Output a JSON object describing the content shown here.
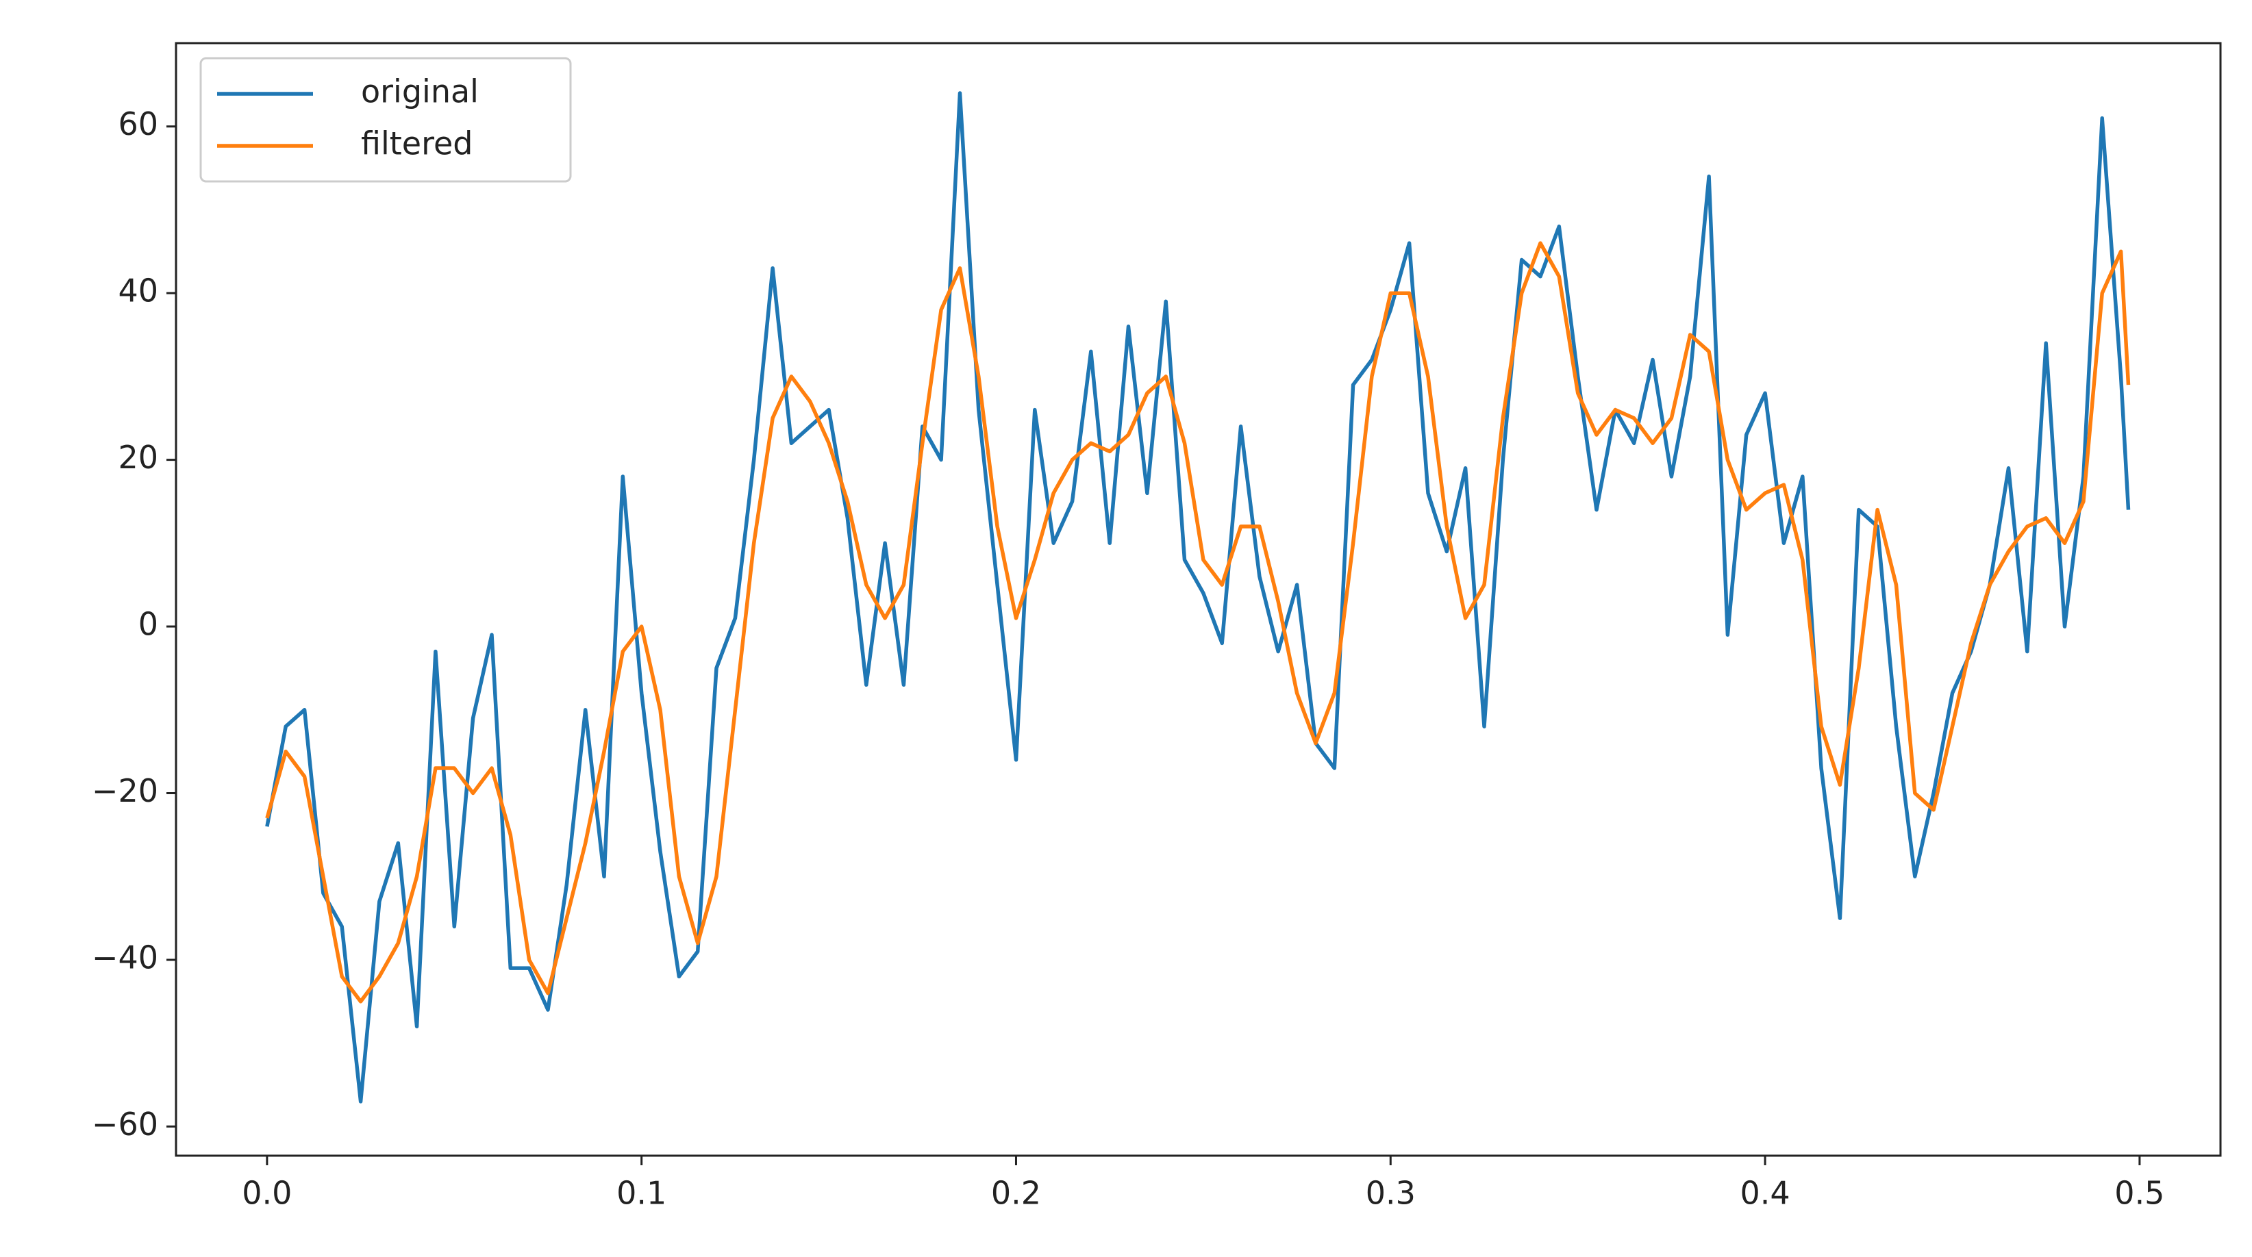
{
  "chart_data": {
    "type": "line",
    "x": [
      0,
      0.005,
      0.01,
      0.015,
      0.02,
      0.025,
      0.03,
      0.035,
      0.04,
      0.045,
      0.05,
      0.055,
      0.06,
      0.065,
      0.07,
      0.075,
      0.08,
      0.085,
      0.09,
      0.095,
      0.1,
      0.105,
      0.11,
      0.115,
      0.12,
      0.125,
      0.13,
      0.135,
      0.14,
      0.145,
      0.15,
      0.155,
      0.16,
      0.165,
      0.17,
      0.175,
      0.18,
      0.185,
      0.19,
      0.195,
      0.2,
      0.205,
      0.21,
      0.215,
      0.22,
      0.225,
      0.23,
      0.235,
      0.24,
      0.245,
      0.25,
      0.255,
      0.26,
      0.265,
      0.27,
      0.275,
      0.28,
      0.285,
      0.29,
      0.295,
      0.3,
      0.305,
      0.31,
      0.315,
      0.32,
      0.325,
      0.33,
      0.335,
      0.34,
      0.345,
      0.35,
      0.355,
      0.36,
      0.365,
      0.37,
      0.375,
      0.38,
      0.385,
      0.39,
      0.395,
      0.4,
      0.405,
      0.41,
      0.415,
      0.42,
      0.425,
      0.43,
      0.435,
      0.44,
      0.445,
      0.45,
      0.455,
      0.46,
      0.465,
      0.47,
      0.475,
      0.48,
      0.485,
      0.49,
      0.495,
      0.497
    ],
    "series": [
      {
        "name": "original",
        "color": "#1f77b4",
        "values": [
          -24,
          -12,
          -10,
          -32,
          -36,
          -57,
          -33,
          -26,
          -48,
          -3,
          -36,
          -11,
          -1,
          -41,
          -41,
          -46,
          -31,
          -10,
          -30,
          18,
          -8,
          -27,
          -42,
          -39,
          -5,
          1,
          20,
          43,
          22,
          24,
          26,
          13,
          -7,
          10,
          -7,
          24,
          20,
          64,
          26,
          5,
          -16,
          26,
          10,
          15,
          33,
          10,
          36,
          16,
          39,
          8,
          4,
          -2,
          24,
          6,
          -3,
          5,
          -14,
          -17,
          29,
          32,
          38,
          46,
          16,
          9,
          19,
          -12,
          20,
          44,
          42,
          48,
          30,
          14,
          26,
          22,
          32,
          18,
          30,
          54,
          -1,
          23,
          28,
          10,
          18,
          -17,
          -35,
          14,
          12,
          -12,
          -30,
          -20,
          -8,
          -3,
          5,
          19,
          -3,
          34,
          0,
          18,
          61,
          30,
          14
        ]
      },
      {
        "name": "filtered",
        "color": "#ff7f0e",
        "values": [
          -23,
          -15,
          -18,
          -30,
          -42,
          -45,
          -42,
          -38,
          -30,
          -17,
          -17,
          -20,
          -17,
          -25,
          -40,
          -44,
          -35,
          -26,
          -15,
          -3,
          0,
          -10,
          -30,
          -38,
          -30,
          -10,
          10,
          25,
          30,
          27,
          22,
          15,
          5,
          1,
          5,
          22,
          38,
          43,
          30,
          12,
          1,
          8,
          16,
          20,
          22,
          21,
          23,
          28,
          30,
          22,
          8,
          5,
          12,
          12,
          3,
          -8,
          -14,
          -8,
          10,
          30,
          40,
          40,
          30,
          12,
          1,
          5,
          25,
          40,
          46,
          42,
          28,
          23,
          26,
          25,
          22,
          25,
          35,
          33,
          20,
          14,
          16,
          17,
          8,
          -12,
          -19,
          -5,
          14,
          5,
          -20,
          -22,
          -12,
          -2,
          5,
          9,
          12,
          13,
          10,
          15,
          40,
          45,
          29
        ]
      }
    ],
    "xlim": [
      -0.0243,
      0.5216
    ],
    "ylim": [
      -63.5,
      70
    ],
    "xticks": [
      {
        "value": 0,
        "label": "0.0"
      },
      0.1,
      0.2,
      0.3,
      0.4,
      0.5
    ],
    "yticks": [
      {
        "value": -60,
        "label": "−60"
      },
      {
        "value": -40,
        "label": "−40"
      },
      {
        "value": -20,
        "label": "−20"
      },
      0,
      20,
      40,
      60
    ],
    "legend": "upper left",
    "grid": false
  }
}
